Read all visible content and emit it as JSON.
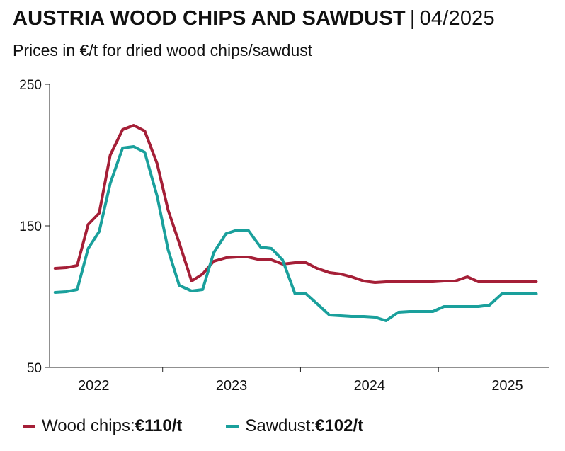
{
  "header": {
    "title": "AUSTRIA WOOD CHIPS AND SAWDUST",
    "separator": "|",
    "date": "04/2025",
    "subtitle": "Prices in €/t for dried wood chips/sawdust"
  },
  "legend": [
    {
      "label": "Wood chips: ",
      "value": "€110/t",
      "color": "#a51f37"
    },
    {
      "label": "Sawdust: ",
      "value": "€102/t",
      "color": "#1aa09c"
    }
  ],
  "chart_data": {
    "type": "line",
    "ylim": [
      50,
      250
    ],
    "yticks": [
      50,
      150,
      250
    ],
    "xlim": [
      2021.68,
      2025.3
    ],
    "year_labels": [
      {
        "label": "2022",
        "x": 2022.0
      },
      {
        "label": "2023",
        "x": 2023.0
      },
      {
        "label": "2024",
        "x": 2024.0
      },
      {
        "label": "2025",
        "x": 2025.0
      }
    ],
    "year_separators": [
      2022.5,
      2023.5,
      2024.5
    ],
    "grid": false,
    "series": [
      {
        "name": "Wood chips",
        "color": "#a51f37",
        "x": [
          2021.72,
          2021.8,
          2021.88,
          2021.96,
          2022.04,
          2022.12,
          2022.21,
          2022.29,
          2022.37,
          2022.46,
          2022.54,
          2022.62,
          2022.71,
          2022.79,
          2022.87,
          2022.96,
          2023.04,
          2023.12,
          2023.21,
          2023.29,
          2023.37,
          2023.46,
          2023.54,
          2023.62,
          2023.71,
          2023.79,
          2023.87,
          2023.96,
          2024.04,
          2024.12,
          2024.21,
          2024.29,
          2024.37,
          2024.46,
          2024.54,
          2024.62,
          2024.71,
          2024.79,
          2024.87,
          2024.96,
          2025.04,
          2025.12,
          2025.21
        ],
        "values": [
          120,
          120.5,
          122,
          151,
          159,
          200,
          218,
          221,
          217,
          194,
          161,
          138,
          111,
          116,
          125,
          127.5,
          128,
          128,
          126,
          126,
          123,
          124,
          124,
          120,
          117,
          116,
          114,
          111,
          110,
          110.5,
          110.5,
          110.5,
          110.5,
          110.5,
          111,
          111,
          114,
          110.5,
          110.5,
          110.5,
          110.5,
          110.5,
          110.5
        ]
      },
      {
        "name": "Sawdust",
        "color": "#1aa09c",
        "x": [
          2021.72,
          2021.8,
          2021.88,
          2021.96,
          2022.04,
          2022.12,
          2022.21,
          2022.29,
          2022.37,
          2022.46,
          2022.54,
          2022.62,
          2022.71,
          2022.79,
          2022.87,
          2022.96,
          2023.04,
          2023.12,
          2023.21,
          2023.29,
          2023.37,
          2023.46,
          2023.54,
          2023.62,
          2023.71,
          2023.79,
          2023.87,
          2023.96,
          2024.04,
          2024.12,
          2024.21,
          2024.29,
          2024.37,
          2024.46,
          2024.54,
          2024.62,
          2024.71,
          2024.79,
          2024.87,
          2024.96,
          2025.04,
          2025.12,
          2025.21
        ],
        "values": [
          103,
          103.5,
          105,
          134,
          146,
          180,
          205,
          206,
          202,
          171,
          133,
          108,
          104,
          105,
          131,
          144.5,
          147,
          147,
          135,
          134,
          126,
          102,
          102,
          95,
          87,
          86.5,
          86,
          86,
          85.5,
          83,
          89,
          89.5,
          89.5,
          89.5,
          93,
          93,
          93,
          93,
          94,
          102,
          102,
          102,
          102
        ]
      }
    ]
  }
}
